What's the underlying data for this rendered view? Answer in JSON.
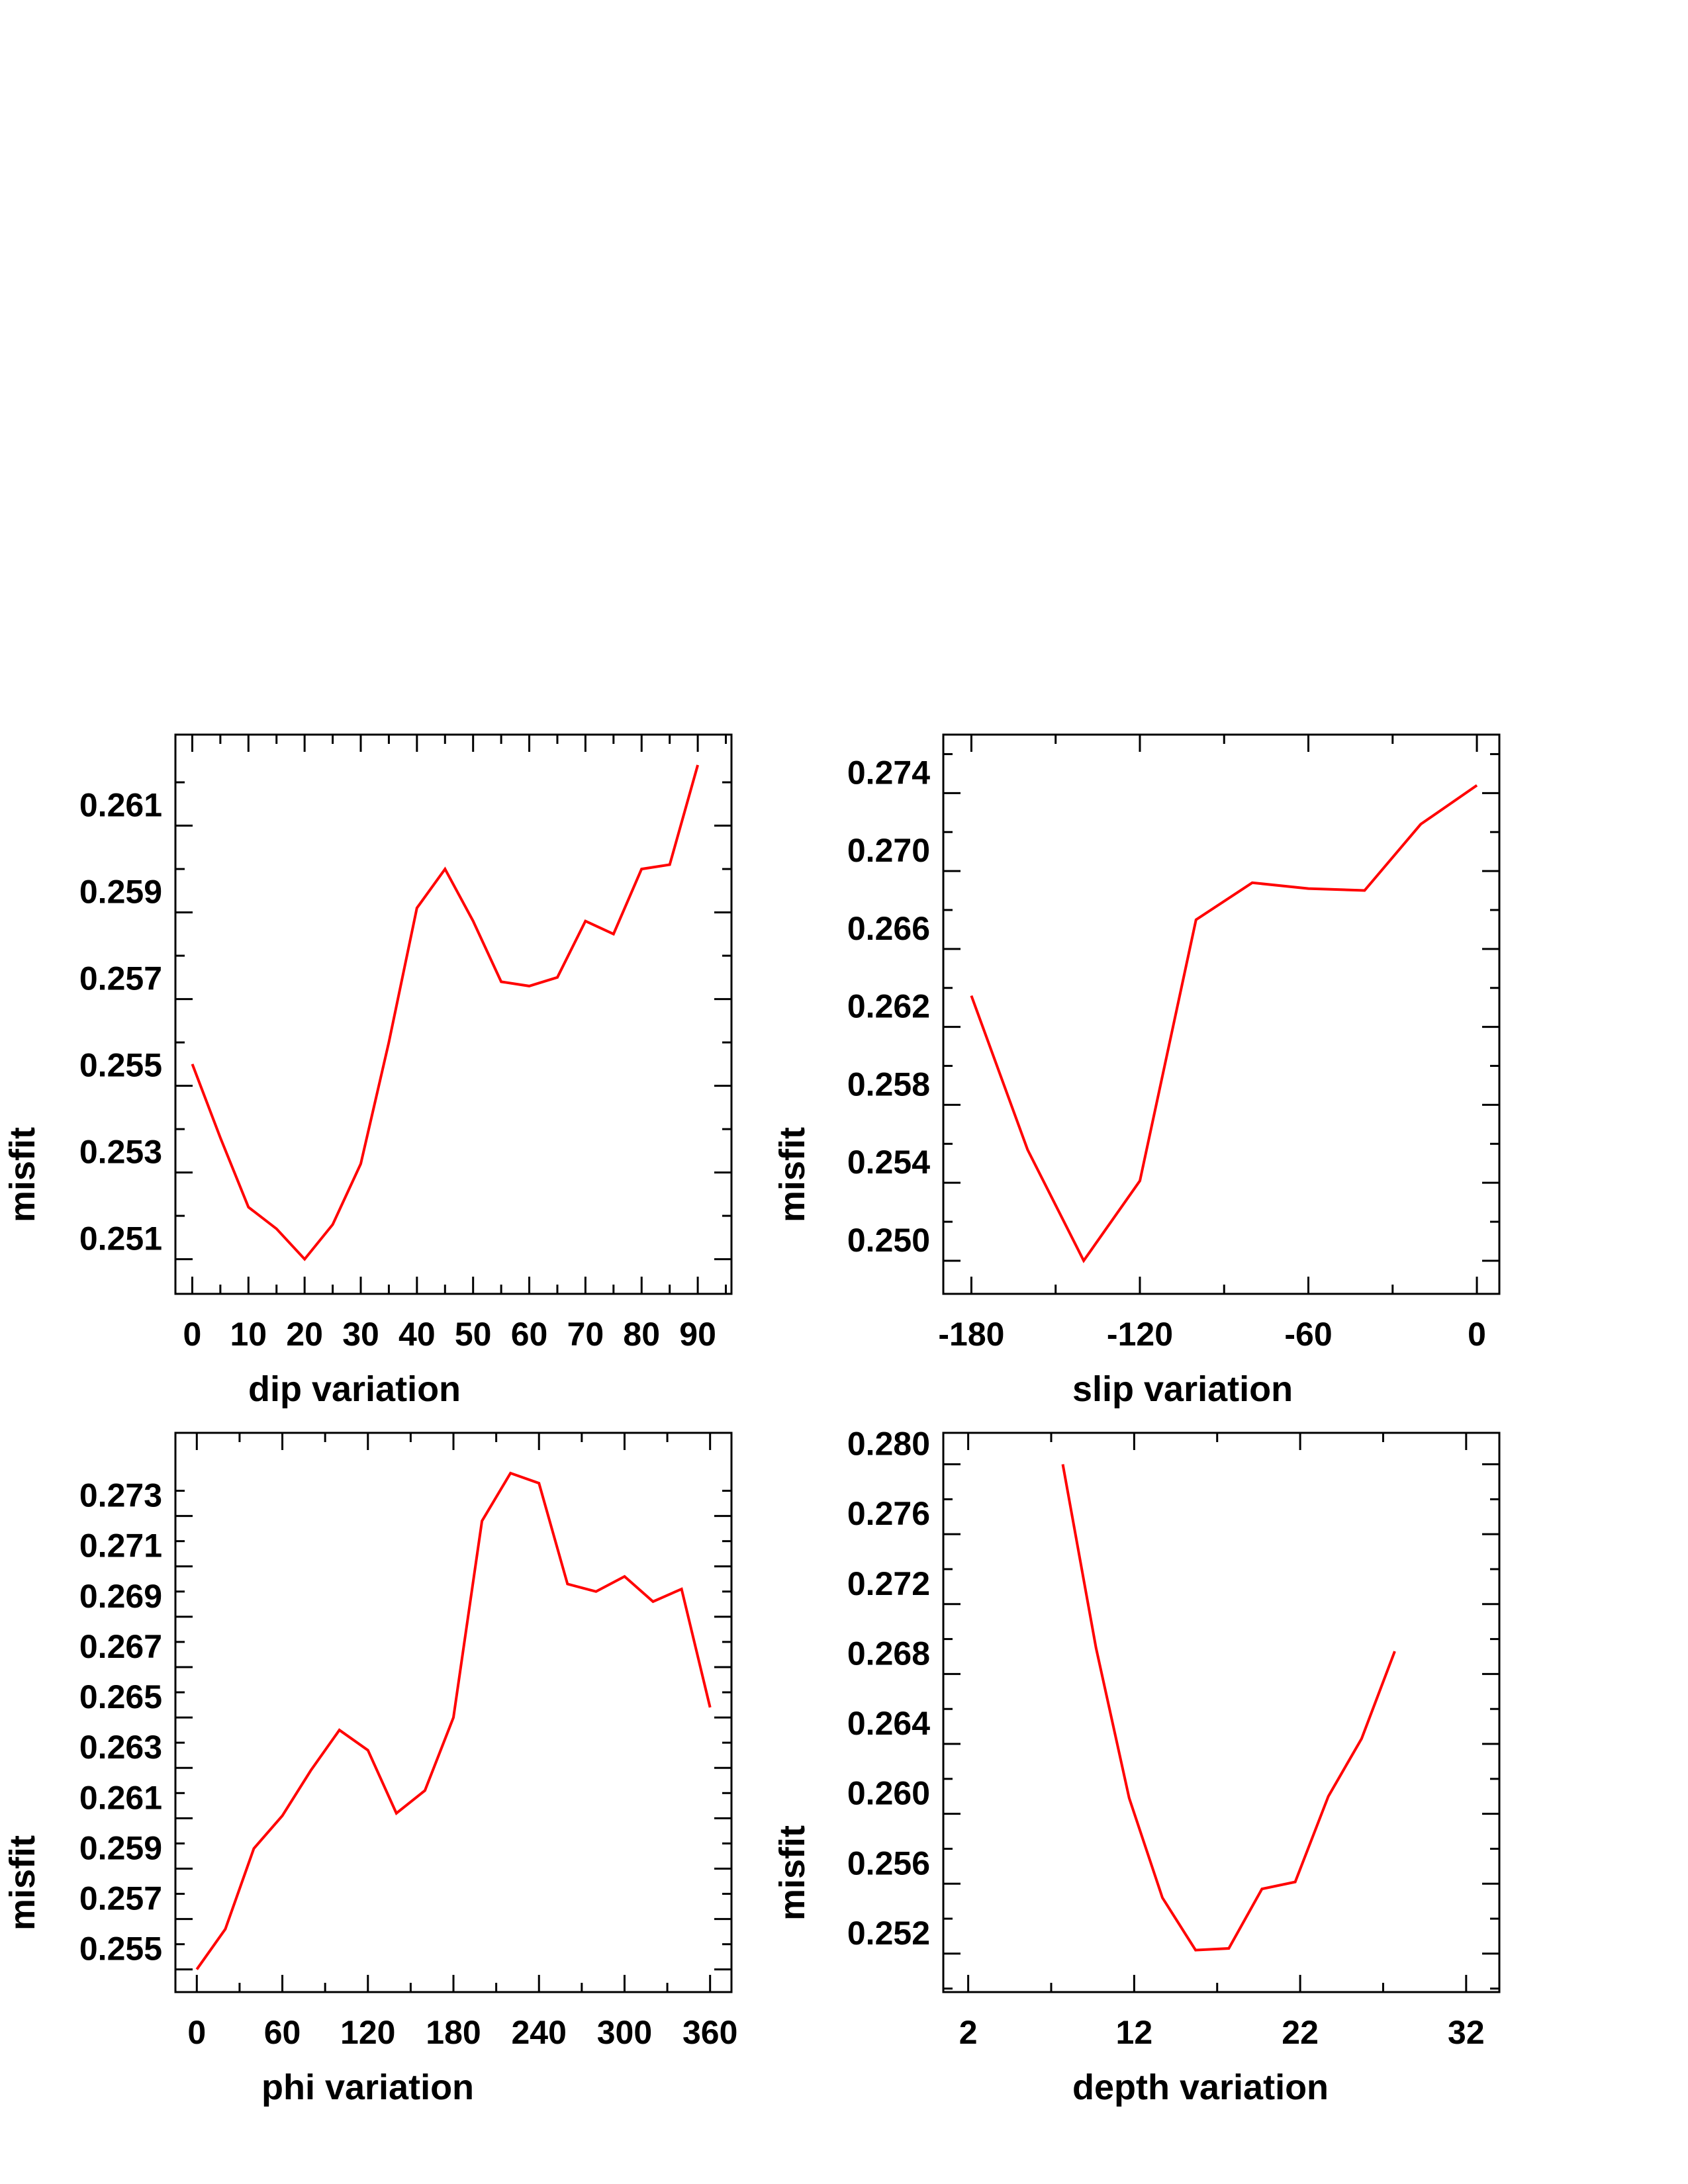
{
  "colors": {
    "series": "#ff0000",
    "axis": "#000000",
    "background": "#ffffff"
  },
  "chart_data": [
    {
      "type": "line",
      "xlabel": "dip    variation",
      "ylabel": "misfit",
      "xlim": [
        -3,
        96
      ],
      "ylim": [
        0.2502,
        0.2631
      ],
      "xticks": [
        0,
        10,
        20,
        30,
        40,
        50,
        60,
        70,
        80,
        90
      ],
      "yticks": [
        "0.251",
        "0.253",
        "0.255",
        "0.257",
        "0.259",
        "0.261"
      ],
      "grid": false,
      "x": [
        0,
        5,
        10,
        15,
        20,
        25,
        30,
        35,
        40,
        45,
        50,
        55,
        60,
        65,
        70,
        75,
        80,
        85,
        90
      ],
      "y": [
        0.2555,
        0.2538,
        0.2522,
        0.2517,
        0.251,
        0.2518,
        0.2532,
        0.256,
        0.2591,
        0.26,
        0.2588,
        0.2574,
        0.2573,
        0.2575,
        0.2588,
        0.2585,
        0.26,
        0.2601,
        0.2624
      ]
    },
    {
      "type": "line",
      "xlabel": "slip   variation",
      "ylabel": "misfit",
      "xlim": [
        -190,
        8
      ],
      "ylim": [
        0.2483,
        0.277
      ],
      "xticks": [
        "-180",
        "-120",
        "-60",
        "0"
      ],
      "yticks": [
        "0.250",
        "0.254",
        "0.258",
        "0.262",
        "0.266",
        "0.270",
        "0.274"
      ],
      "grid": false,
      "x": [
        -180,
        -160,
        -140,
        -120,
        -100,
        -80,
        -60,
        -40,
        -20,
        0
      ],
      "y": [
        0.2636,
        0.2557,
        0.25,
        0.2541,
        0.2675,
        0.2694,
        0.2691,
        0.269,
        0.2724,
        0.2744
      ]
    },
    {
      "type": "line",
      "xlabel": "phi    variation",
      "ylabel": "misfit",
      "xlim": [
        -15,
        375
      ],
      "ylim": [
        0.2541,
        0.2763
      ],
      "xticks": [
        0,
        60,
        120,
        180,
        240,
        300,
        360
      ],
      "yticks": [
        "0.255",
        "0.257",
        "0.259",
        "0.261",
        "0.263",
        "0.265",
        "0.267",
        "0.269",
        "0.271",
        "0.273"
      ],
      "grid": false,
      "x": [
        0,
        20,
        40,
        60,
        80,
        100,
        120,
        140,
        160,
        180,
        200,
        220,
        240,
        260,
        280,
        300,
        320,
        340,
        360
      ],
      "y": [
        0.255,
        0.2566,
        0.2598,
        0.2611,
        0.2629,
        0.2645,
        0.2637,
        0.2612,
        0.2621,
        0.265,
        0.2728,
        0.2747,
        0.2743,
        0.2703,
        0.27,
        0.2706,
        0.2696,
        0.2701,
        0.2654
      ]
    },
    {
      "type": "line",
      "xlabel": "depth  variation",
      "ylabel": "misfit",
      "xlim": [
        0.5,
        34
      ],
      "ylim": [
        0.2498,
        0.2818
      ],
      "xticks": [
        2,
        12,
        22,
        32
      ],
      "yticks": [
        "0.252",
        "0.256",
        "0.260",
        "0.264",
        "0.268",
        "0.272",
        "0.276",
        "0.280"
      ],
      "grid": false,
      "x": [
        7.7,
        9.7,
        11.7,
        13.7,
        15.7,
        17.7,
        19.7,
        21.7,
        23.7,
        25.7,
        27.7
      ],
      "y": [
        0.28,
        0.2695,
        0.2609,
        0.2552,
        0.2522,
        0.2523,
        0.2557,
        0.2561,
        0.261,
        0.2643,
        0.2693
      ]
    }
  ]
}
